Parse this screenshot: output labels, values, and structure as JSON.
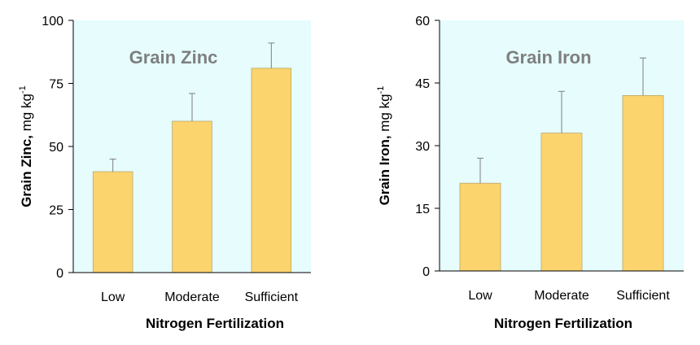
{
  "chart_data": [
    {
      "type": "bar",
      "title": "Grain Zinc",
      "ylabel_bold": "Grain Zinc,",
      "ylabel_unit": "mg kg",
      "ylabel_exp": "-1",
      "xlabel": "Nitrogen Fertilization",
      "categories": [
        "Low",
        "Moderate",
        "Sufficient"
      ],
      "values": [
        40,
        60,
        81
      ],
      "error_upper": [
        45,
        71,
        91
      ],
      "ylim": [
        0,
        100
      ],
      "yticks": [
        0,
        25,
        50,
        75,
        100
      ],
      "ytick_labels": [
        "0",
        "25",
        "50",
        "75",
        "100"
      ],
      "grid": false,
      "bar_color": "#fcd46e",
      "plot_bg": "#e6fcfd"
    },
    {
      "type": "bar",
      "title": "Grain Iron",
      "ylabel_bold": "Grain Iron,",
      "ylabel_unit": "mg kg",
      "ylabel_exp": "-1",
      "xlabel": "Nitrogen Fertilization",
      "categories": [
        "Low",
        "Moderate",
        "Sufficient"
      ],
      "values": [
        21,
        33,
        42
      ],
      "error_upper": [
        27,
        43,
        51
      ],
      "ylim": [
        0,
        60
      ],
      "yticks": [
        0,
        15,
        30,
        45,
        60
      ],
      "ytick_labels": [
        "0",
        "15",
        "30",
        "45",
        "60"
      ],
      "grid": false,
      "bar_color": "#fcd46e",
      "plot_bg": "#e6fcfd"
    }
  ]
}
